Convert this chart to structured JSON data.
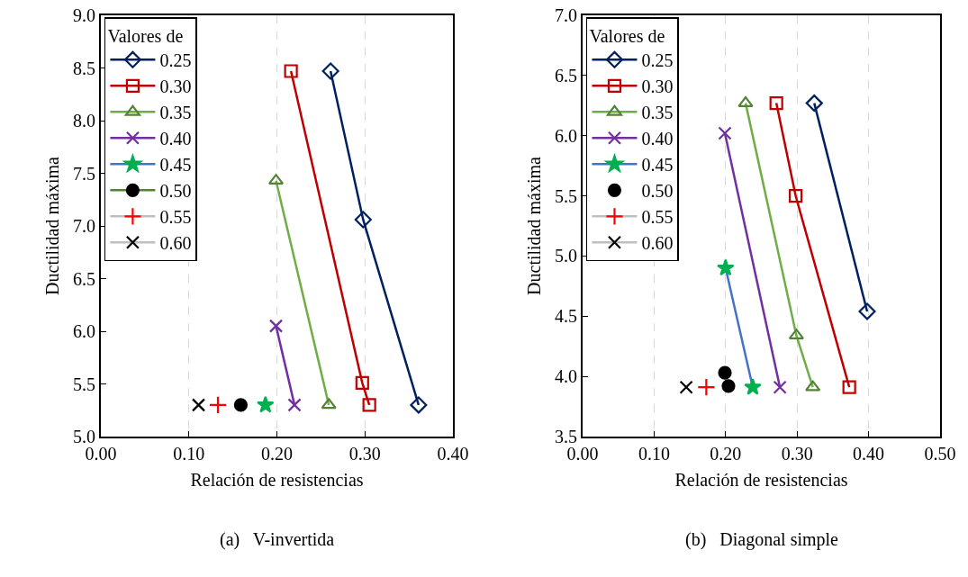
{
  "chart_data": [
    {
      "type": "line",
      "xlabel": "Relación de resistencias",
      "ylabel": "Ductilidad máxima",
      "legend_title": "Valores de",
      "legend": "top left",
      "grid": "x",
      "annotations": [
        "(a)   V-invertida"
      ],
      "xlim": [
        0,
        0.4
      ],
      "xticks": [
        {
          "value": 0,
          "label": "0.00"
        },
        {
          "value": 0.1,
          "label": "0.10"
        },
        {
          "value": 0.2,
          "label": "0.20"
        },
        {
          "value": 0.3,
          "label": "0.30"
        },
        {
          "value": 0.4,
          "label": "0.40"
        }
      ],
      "ylim": [
        5,
        9
      ],
      "yticks": [
        {
          "value": 5,
          "label": "5.0"
        },
        {
          "value": 5.5,
          "label": "5.5"
        },
        {
          "value": 6,
          "label": "6.0"
        },
        {
          "value": 6.5,
          "label": "6.5"
        },
        {
          "value": 7,
          "label": "7.0"
        },
        {
          "value": 7.5,
          "label": "7.5"
        },
        {
          "value": 8,
          "label": "8.0"
        },
        {
          "value": 8.5,
          "label": "8.5"
        },
        {
          "value": 9,
          "label": "9.0"
        }
      ],
      "series": [
        {
          "name": "0.25",
          "color": "#002060",
          "colors": [
            "#002060",
            "#002060",
            "#002060"
          ],
          "marker": "diamond",
          "x": [
            0.261,
            0.298,
            0.361
          ],
          "values": [
            8.47,
            7.06,
            5.3
          ]
        },
        {
          "name": "0.30",
          "color": "#c00000",
          "colors": [
            "#c00000",
            "#c00000",
            "#c00000"
          ],
          "marker": "square",
          "x": [
            0.216,
            0.297,
            0.305
          ],
          "values": [
            8.47,
            5.51,
            5.3
          ]
        },
        {
          "name": "0.35",
          "color": "#70ad47",
          "colors": [
            "#548235",
            "#548235"
          ],
          "marker": "triangle",
          "x": [
            0.199,
            0.259
          ],
          "values": [
            7.43,
            5.3
          ]
        },
        {
          "name": "0.40",
          "color": "#7030a0",
          "colors": [
            "#7030a0",
            "#7030a0"
          ],
          "marker": "x",
          "x": [
            0.199,
            0.22
          ],
          "values": [
            6.05,
            5.3
          ]
        },
        {
          "name": "0.45",
          "color": "#4472c4",
          "colors": [
            "#00b050"
          ],
          "marker": "star",
          "x": [
            0.187
          ],
          "values": [
            5.3
          ]
        },
        {
          "name": "0.50",
          "color": "#548235",
          "colors": [
            "#000000"
          ],
          "marker": "circle",
          "x": [
            0.159
          ],
          "values": [
            5.3
          ]
        },
        {
          "name": "0.55",
          "color": "#bfbfbf",
          "colors": [
            "#ff0000"
          ],
          "marker": "cross",
          "x": [
            0.133
          ],
          "values": [
            5.3
          ]
        },
        {
          "name": "0.60",
          "color": "#bfbfbf",
          "colors": [
            "#000000"
          ],
          "marker": "x",
          "x": [
            0.111
          ],
          "values": [
            5.3
          ]
        }
      ]
    },
    {
      "type": "line",
      "xlabel": "Relación de resistencias",
      "ylabel": "Ductilidad máxima",
      "legend_title": "Valores de",
      "legend": "top left",
      "grid": "x",
      "annotations": [
        "(b)   Diagonal simple"
      ],
      "xlim": [
        0,
        0.5
      ],
      "xticks": [
        {
          "value": 0,
          "label": "0.00"
        },
        {
          "value": 0.1,
          "label": "0.10"
        },
        {
          "value": 0.2,
          "label": "0.20"
        },
        {
          "value": 0.3,
          "label": "0.30"
        },
        {
          "value": 0.4,
          "label": "0.40"
        },
        {
          "value": 0.5,
          "label": "0.50"
        }
      ],
      "ylim": [
        3.5,
        7
      ],
      "yticks": [
        {
          "value": 3.5,
          "label": "3.5"
        },
        {
          "value": 4,
          "label": "4.0"
        },
        {
          "value": 4.5,
          "label": "4.5"
        },
        {
          "value": 5,
          "label": "5.0"
        },
        {
          "value": 5.5,
          "label": "5.5"
        },
        {
          "value": 6,
          "label": "6.0"
        },
        {
          "value": 6.5,
          "label": "6.5"
        },
        {
          "value": 7,
          "label": "7.0"
        }
      ],
      "series": [
        {
          "name": "0.25",
          "color": "#002060",
          "colors": [
            "#002060",
            "#002060"
          ],
          "marker": "diamond",
          "x": [
            0.324,
            0.398
          ],
          "values": [
            6.27,
            4.54
          ]
        },
        {
          "name": "0.30",
          "color": "#c00000",
          "colors": [
            "#c00000",
            "#c00000",
            "#c00000"
          ],
          "marker": "square",
          "x": [
            0.271,
            0.298,
            0.373
          ],
          "values": [
            6.27,
            5.5,
            3.91
          ]
        },
        {
          "name": "0.35",
          "color": "#70ad47",
          "colors": [
            "#548235",
            "#548235",
            "#548235"
          ],
          "marker": "triangle",
          "x": [
            0.228,
            0.299,
            0.322
          ],
          "values": [
            6.27,
            4.34,
            3.91
          ]
        },
        {
          "name": "0.40",
          "color": "#7030a0",
          "colors": [
            "#7030a0",
            "#7030a0"
          ],
          "marker": "x",
          "x": [
            0.199,
            0.276
          ],
          "values": [
            6.02,
            3.91
          ]
        },
        {
          "name": "0.45",
          "color": "#4472c4",
          "colors": [
            "#00b050",
            "#00b050"
          ],
          "marker": "star",
          "x": [
            0.2,
            0.238
          ],
          "values": [
            4.9,
            3.91
          ]
        },
        {
          "name": "0.50",
          "type": "scatter",
          "colors": [
            "#000000",
            "#000000"
          ],
          "marker": "circle",
          "x": [
            0.199,
            0.204
          ],
          "values": [
            4.03,
            3.92
          ]
        },
        {
          "name": "0.55",
          "color": "#bfbfbf",
          "colors": [
            "#ff0000"
          ],
          "marker": "cross",
          "x": [
            0.173
          ],
          "values": [
            3.91
          ]
        },
        {
          "name": "0.60",
          "color": "#bfbfbf",
          "colors": [
            "#000000"
          ],
          "marker": "x",
          "x": [
            0.145
          ],
          "values": [
            3.91
          ]
        }
      ]
    }
  ]
}
